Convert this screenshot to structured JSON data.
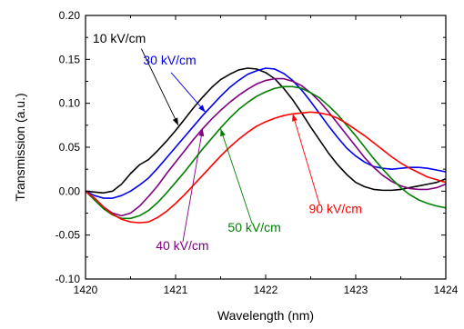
{
  "chart_data": {
    "type": "line",
    "xlabel": "Wavelength (nm)",
    "ylabel": "Transmission (a.u.)",
    "xlim": [
      1420,
      1424
    ],
    "ylim": [
      -0.1,
      0.2
    ],
    "xticks": [
      1420,
      1421,
      1422,
      1423,
      1424
    ],
    "yticks": [
      -0.1,
      -0.05,
      0.0,
      0.05,
      0.1,
      0.15,
      0.2
    ],
    "xtick_labels": [
      "1420",
      "1421",
      "1422",
      "1423",
      "1424"
    ],
    "ytick_labels": [
      "-0.10",
      "-0.05",
      "0.00",
      "0.05",
      "0.10",
      "0.15",
      "0.20"
    ],
    "grid": false,
    "series": [
      {
        "name": "10 kV/cm",
        "color": "#000000",
        "points": [
          [
            1420.0,
            0.0
          ],
          [
            1420.1,
            -0.001
          ],
          [
            1420.2,
            -0.002
          ],
          [
            1420.3,
            0.0
          ],
          [
            1420.4,
            0.008
          ],
          [
            1420.5,
            0.02
          ],
          [
            1420.6,
            0.03
          ],
          [
            1420.7,
            0.036
          ],
          [
            1420.8,
            0.046
          ],
          [
            1420.9,
            0.057
          ],
          [
            1421.0,
            0.069
          ],
          [
            1421.1,
            0.082
          ],
          [
            1421.2,
            0.095
          ],
          [
            1421.3,
            0.107
          ],
          [
            1421.4,
            0.118
          ],
          [
            1421.5,
            0.127
          ],
          [
            1421.6,
            0.133
          ],
          [
            1421.7,
            0.138
          ],
          [
            1421.8,
            0.14
          ],
          [
            1421.9,
            0.139
          ],
          [
            1422.0,
            0.135
          ],
          [
            1422.1,
            0.128
          ],
          [
            1422.2,
            0.117
          ],
          [
            1422.3,
            0.104
          ],
          [
            1422.4,
            0.089
          ],
          [
            1422.5,
            0.073
          ],
          [
            1422.6,
            0.058
          ],
          [
            1422.7,
            0.043
          ],
          [
            1422.8,
            0.03
          ],
          [
            1422.9,
            0.019
          ],
          [
            1423.0,
            0.01
          ],
          [
            1423.1,
            0.005
          ],
          [
            1423.2,
            0.002
          ],
          [
            1423.3,
            0.001
          ],
          [
            1423.4,
            0.001
          ],
          [
            1423.5,
            0.002
          ],
          [
            1423.6,
            0.004
          ],
          [
            1423.7,
            0.006
          ],
          [
            1423.8,
            0.008
          ],
          [
            1423.9,
            0.01
          ],
          [
            1424.0,
            0.014
          ]
        ]
      },
      {
        "name": "30 kV/cm",
        "color": "#0000ee",
        "points": [
          [
            1420.0,
            0.0
          ],
          [
            1420.1,
            -0.005
          ],
          [
            1420.2,
            -0.008
          ],
          [
            1420.3,
            -0.008
          ],
          [
            1420.4,
            -0.005
          ],
          [
            1420.5,
            0.0
          ],
          [
            1420.6,
            0.007
          ],
          [
            1420.7,
            0.015
          ],
          [
            1420.8,
            0.026
          ],
          [
            1420.9,
            0.038
          ],
          [
            1421.0,
            0.05
          ],
          [
            1421.1,
            0.062
          ],
          [
            1421.2,
            0.074
          ],
          [
            1421.3,
            0.086
          ],
          [
            1421.4,
            0.097
          ],
          [
            1421.5,
            0.108
          ],
          [
            1421.6,
            0.118
          ],
          [
            1421.7,
            0.126
          ],
          [
            1421.8,
            0.133
          ],
          [
            1421.9,
            0.137
          ],
          [
            1422.0,
            0.14
          ],
          [
            1422.1,
            0.139
          ],
          [
            1422.2,
            0.134
          ],
          [
            1422.3,
            0.126
          ],
          [
            1422.4,
            0.115
          ],
          [
            1422.5,
            0.102
          ],
          [
            1422.6,
            0.088
          ],
          [
            1422.7,
            0.074
          ],
          [
            1422.8,
            0.061
          ],
          [
            1422.9,
            0.049
          ],
          [
            1423.0,
            0.04
          ],
          [
            1423.1,
            0.033
          ],
          [
            1423.2,
            0.028
          ],
          [
            1423.3,
            0.026
          ],
          [
            1423.4,
            0.025
          ],
          [
            1423.5,
            0.026
          ],
          [
            1423.6,
            0.027
          ],
          [
            1423.7,
            0.027
          ],
          [
            1423.8,
            0.026
          ],
          [
            1423.9,
            0.024
          ],
          [
            1424.0,
            0.022
          ]
        ]
      },
      {
        "name": "40 kV/cm",
        "color": "#800080",
        "points": [
          [
            1420.0,
            0.0
          ],
          [
            1420.1,
            -0.008
          ],
          [
            1420.2,
            -0.018
          ],
          [
            1420.3,
            -0.025
          ],
          [
            1420.4,
            -0.028
          ],
          [
            1420.5,
            -0.025
          ],
          [
            1420.6,
            -0.017
          ],
          [
            1420.7,
            -0.006
          ],
          [
            1420.8,
            0.006
          ],
          [
            1420.9,
            0.02
          ],
          [
            1421.0,
            0.033
          ],
          [
            1421.1,
            0.046
          ],
          [
            1421.2,
            0.059
          ],
          [
            1421.3,
            0.071
          ],
          [
            1421.4,
            0.082
          ],
          [
            1421.5,
            0.092
          ],
          [
            1421.6,
            0.101
          ],
          [
            1421.7,
            0.109
          ],
          [
            1421.8,
            0.116
          ],
          [
            1421.9,
            0.122
          ],
          [
            1422.0,
            0.126
          ],
          [
            1422.1,
            0.128
          ],
          [
            1422.2,
            0.128
          ],
          [
            1422.3,
            0.125
          ],
          [
            1422.4,
            0.12
          ],
          [
            1422.5,
            0.112
          ],
          [
            1422.6,
            0.102
          ],
          [
            1422.7,
            0.09
          ],
          [
            1422.8,
            0.077
          ],
          [
            1422.9,
            0.064
          ],
          [
            1423.0,
            0.051
          ],
          [
            1423.1,
            0.038
          ],
          [
            1423.2,
            0.027
          ],
          [
            1423.3,
            0.018
          ],
          [
            1423.4,
            0.011
          ],
          [
            1423.5,
            0.006
          ],
          [
            1423.6,
            0.003
          ],
          [
            1423.7,
            0.002
          ],
          [
            1423.8,
            0.002
          ],
          [
            1423.9,
            0.004
          ],
          [
            1424.0,
            0.008
          ]
        ]
      },
      {
        "name": "50 kV/cm",
        "color": "#008000",
        "points": [
          [
            1420.0,
            0.0
          ],
          [
            1420.1,
            -0.01
          ],
          [
            1420.2,
            -0.02
          ],
          [
            1420.3,
            -0.027
          ],
          [
            1420.4,
            -0.031
          ],
          [
            1420.5,
            -0.031
          ],
          [
            1420.6,
            -0.028
          ],
          [
            1420.7,
            -0.022
          ],
          [
            1420.8,
            -0.013
          ],
          [
            1420.9,
            -0.002
          ],
          [
            1421.0,
            0.01
          ],
          [
            1421.1,
            0.022
          ],
          [
            1421.2,
            0.035
          ],
          [
            1421.3,
            0.048
          ],
          [
            1421.4,
            0.06
          ],
          [
            1421.5,
            0.072
          ],
          [
            1421.6,
            0.083
          ],
          [
            1421.7,
            0.093
          ],
          [
            1421.8,
            0.101
          ],
          [
            1421.9,
            0.108
          ],
          [
            1422.0,
            0.113
          ],
          [
            1422.1,
            0.117
          ],
          [
            1422.2,
            0.119
          ],
          [
            1422.3,
            0.119
          ],
          [
            1422.4,
            0.117
          ],
          [
            1422.5,
            0.112
          ],
          [
            1422.6,
            0.106
          ],
          [
            1422.7,
            0.097
          ],
          [
            1422.8,
            0.087
          ],
          [
            1422.9,
            0.075
          ],
          [
            1423.0,
            0.063
          ],
          [
            1423.1,
            0.05
          ],
          [
            1423.2,
            0.037
          ],
          [
            1423.3,
            0.025
          ],
          [
            1423.4,
            0.014
          ],
          [
            1423.5,
            0.004
          ],
          [
            1423.6,
            -0.004
          ],
          [
            1423.7,
            -0.01
          ],
          [
            1423.8,
            -0.014
          ],
          [
            1423.9,
            -0.017
          ],
          [
            1424.0,
            -0.019
          ]
        ]
      },
      {
        "name": "90 kV/cm",
        "color": "#ff0000",
        "points": [
          [
            1420.0,
            0.0
          ],
          [
            1420.1,
            -0.008
          ],
          [
            1420.2,
            -0.018
          ],
          [
            1420.3,
            -0.026
          ],
          [
            1420.4,
            -0.032
          ],
          [
            1420.5,
            -0.035
          ],
          [
            1420.6,
            -0.036
          ],
          [
            1420.7,
            -0.035
          ],
          [
            1420.8,
            -0.03
          ],
          [
            1420.9,
            -0.023
          ],
          [
            1421.0,
            -0.014
          ],
          [
            1421.1,
            -0.004
          ],
          [
            1421.2,
            0.007
          ],
          [
            1421.3,
            0.018
          ],
          [
            1421.4,
            0.029
          ],
          [
            1421.5,
            0.04
          ],
          [
            1421.6,
            0.05
          ],
          [
            1421.7,
            0.059
          ],
          [
            1421.8,
            0.067
          ],
          [
            1421.9,
            0.074
          ],
          [
            1422.0,
            0.079
          ],
          [
            1422.1,
            0.083
          ],
          [
            1422.2,
            0.086
          ],
          [
            1422.3,
            0.088
          ],
          [
            1422.4,
            0.089
          ],
          [
            1422.5,
            0.09
          ],
          [
            1422.6,
            0.089
          ],
          [
            1422.7,
            0.087
          ],
          [
            1422.8,
            0.083
          ],
          [
            1422.9,
            0.077
          ],
          [
            1423.0,
            0.07
          ],
          [
            1423.1,
            0.063
          ],
          [
            1423.2,
            0.055
          ],
          [
            1423.3,
            0.047
          ],
          [
            1423.4,
            0.039
          ],
          [
            1423.5,
            0.032
          ],
          [
            1423.6,
            0.026
          ],
          [
            1423.7,
            0.021
          ],
          [
            1423.8,
            0.016
          ],
          [
            1423.9,
            0.013
          ],
          [
            1424.0,
            0.01
          ]
        ]
      }
    ],
    "annotations": [
      {
        "text": "10 kV/cm",
        "color": "#000000",
        "series": 0,
        "label_x": 1420.08,
        "label_y": 0.169,
        "arrow_from": [
          1420.62,
          0.162
        ],
        "arrow_to": [
          1421.03,
          0.075
        ]
      },
      {
        "text": "30 kV/cm",
        "color": "#0000ee",
        "series": 1,
        "label_x": 1420.64,
        "label_y": 0.144,
        "arrow_from": [
          1420.95,
          0.135
        ],
        "arrow_to": [
          1421.33,
          0.09
        ]
      },
      {
        "text": "40 kV/cm",
        "color": "#800080",
        "series": 2,
        "label_x": 1420.78,
        "label_y": -0.067,
        "arrow_from": [
          1421.08,
          -0.058
        ],
        "arrow_to": [
          1421.3,
          0.071
        ]
      },
      {
        "text": "50 kV/cm",
        "color": "#008000",
        "series": 3,
        "label_x": 1421.58,
        "label_y": -0.046,
        "arrow_from": [
          1421.85,
          -0.037
        ],
        "arrow_to": [
          1421.5,
          0.071
        ]
      },
      {
        "text": "90 kV/cm",
        "color": "#ff0000",
        "series": 4,
        "label_x": 1422.48,
        "label_y": -0.025,
        "arrow_from": [
          1422.6,
          -0.016
        ],
        "arrow_to": [
          1422.3,
          0.088
        ]
      }
    ]
  }
}
